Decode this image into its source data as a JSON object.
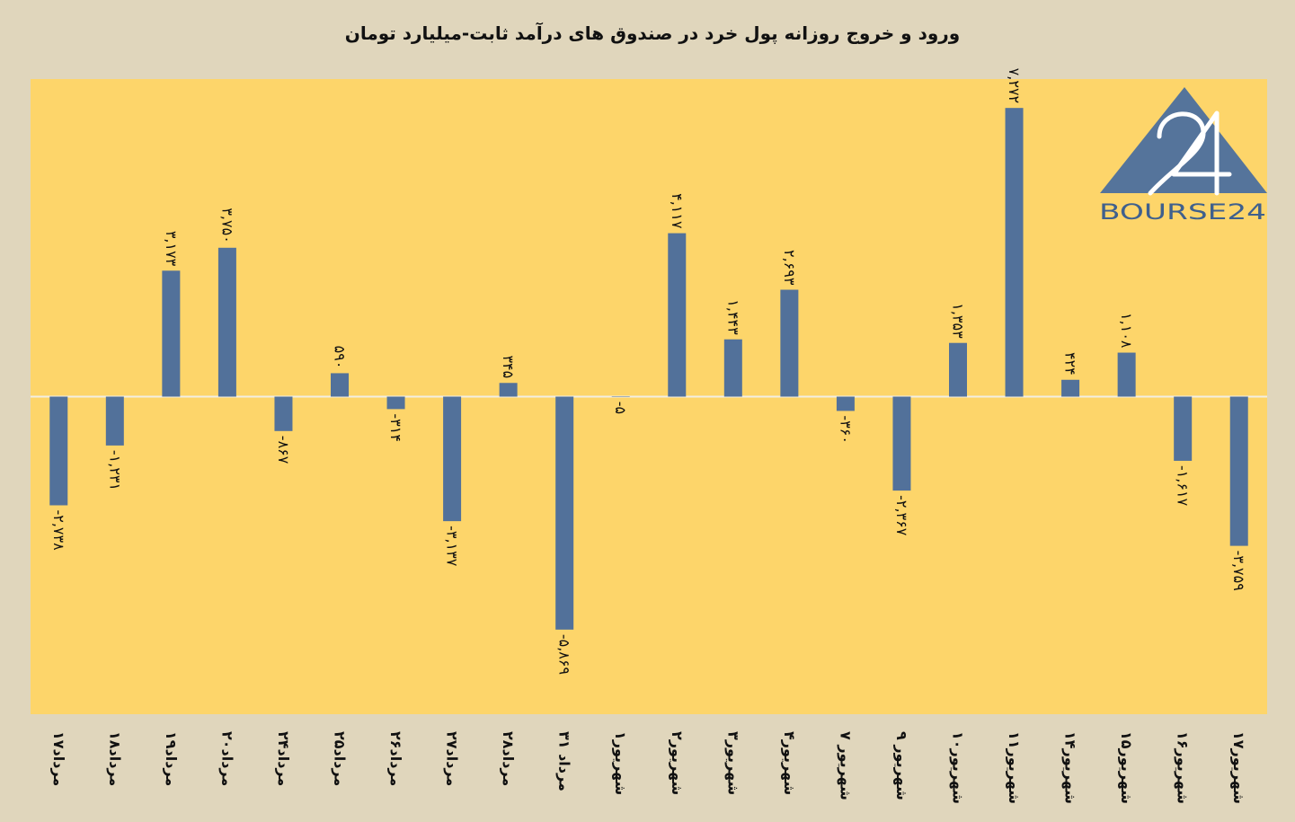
{
  "colors": {
    "background": "#e0d6bc",
    "plot": "#fdd56a",
    "bar": "#52719a",
    "zero_line": "#f3eee3",
    "logo_mark": "#55749b",
    "logo_text": "#3f608d"
  },
  "logo": {
    "text": "BOURSE24",
    "mark": "24"
  },
  "chart_data": {
    "type": "bar",
    "title": "ورود و خروج روزانه پول خرد در صندوق های درآمد ثابت-میلیارد تومان",
    "categories": [
      "۱۷مرداد",
      "۱۸مرداد",
      "۱۹مرداد",
      "۲۰مرداد",
      "۲۴مرداد",
      "۲۵مرداد",
      "۲۶مرداد",
      "۲۷مرداد",
      "۲۸مرداد",
      "۳۱ مرداد",
      "۱شهریور",
      "۲شهریور",
      "۳شهریور",
      "۴شهریور",
      "۷ شهریور",
      "۹ شهریور",
      "۱۰شهریور",
      "۱۱شهریور",
      "۱۴شهریور",
      "۱۵شهریور",
      "۱۶شهریور",
      "۱۷شهریور"
    ],
    "values": [
      -2738,
      -1231,
      3173,
      3750,
      -867,
      590,
      -314,
      -3137,
      345,
      -5869,
      -5,
      4117,
      1443,
      2693,
      -360,
      -2367,
      1353,
      7272,
      424,
      1108,
      -1617,
      -3759
    ],
    "data_labels": [
      "-۲,۷۳۸",
      "-۱,۲۳۱",
      "۳,۱۷۳",
      "۳,۷۵۰",
      "-۸۶۷",
      "۵۹۰",
      "-۳۱۴",
      "-۳,۱۳۷",
      "۳۴۵",
      "-۵,۸۶۹",
      "-۵",
      "۴,۱۱۷",
      "۱,۴۴۳",
      "۲,۶۹۳",
      "-۳۶۰",
      "-۲,۳۶۷",
      "۱,۳۵۳",
      "۷,۲۷۲",
      "۴۲۴",
      "۱,۱۰۸",
      "-۱,۶۱۷",
      "-۳,۷۵۹"
    ],
    "ylim": [
      -8000,
      8000
    ],
    "grid": false,
    "legend": false
  }
}
